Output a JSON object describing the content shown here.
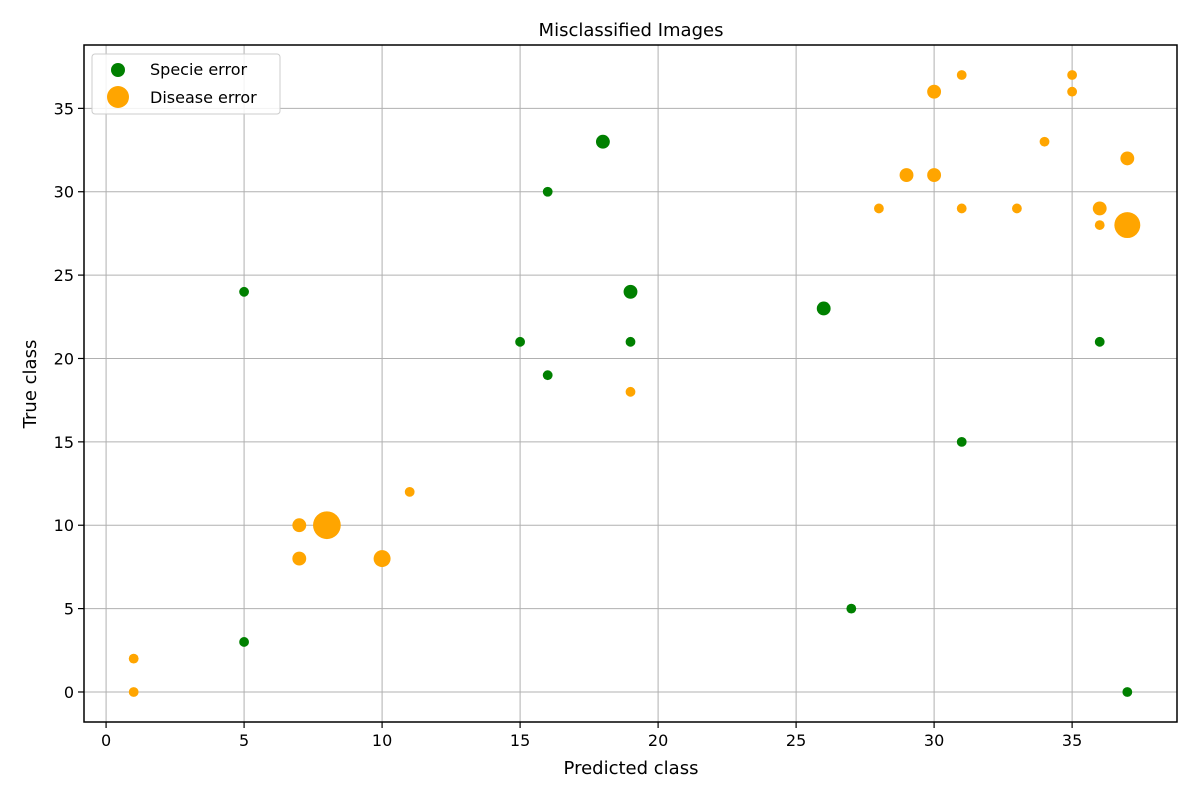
{
  "chart_data": {
    "type": "scatter",
    "title": "Misclassified Images",
    "xlabel": "Predicted class",
    "ylabel": "True class",
    "xlim": [
      -0.8,
      38.8
    ],
    "ylim": [
      -1.8,
      38.8
    ],
    "xticks": [
      0,
      5,
      10,
      15,
      20,
      25,
      30,
      35
    ],
    "yticks": [
      0,
      5,
      10,
      15,
      20,
      25,
      30,
      35
    ],
    "grid": true,
    "legend_position": "top-left",
    "series": [
      {
        "name": "Specie error",
        "color": "#008000",
        "points": [
          {
            "x": 5,
            "y": 24,
            "count": 1
          },
          {
            "x": 5,
            "y": 3,
            "count": 1
          },
          {
            "x": 15,
            "y": 21,
            "count": 1
          },
          {
            "x": 16,
            "y": 30,
            "count": 1
          },
          {
            "x": 16,
            "y": 19,
            "count": 1
          },
          {
            "x": 18,
            "y": 33,
            "count": 2
          },
          {
            "x": 19,
            "y": 24,
            "count": 2
          },
          {
            "x": 19,
            "y": 21,
            "count": 1
          },
          {
            "x": 26,
            "y": 23,
            "count": 2
          },
          {
            "x": 27,
            "y": 5,
            "count": 1
          },
          {
            "x": 31,
            "y": 15,
            "count": 1
          },
          {
            "x": 36,
            "y": 21,
            "count": 1
          },
          {
            "x": 37,
            "y": 0,
            "count": 1
          }
        ]
      },
      {
        "name": "Disease error",
        "color": "#ffa500",
        "points": [
          {
            "x": 1,
            "y": 2,
            "count": 1
          },
          {
            "x": 1,
            "y": 0,
            "count": 1
          },
          {
            "x": 7,
            "y": 10,
            "count": 2
          },
          {
            "x": 7,
            "y": 8,
            "count": 2
          },
          {
            "x": 8,
            "y": 10,
            "count": 8
          },
          {
            "x": 10,
            "y": 8,
            "count": 3
          },
          {
            "x": 11,
            "y": 12,
            "count": 1
          },
          {
            "x": 19,
            "y": 18,
            "count": 1
          },
          {
            "x": 28,
            "y": 29,
            "count": 1
          },
          {
            "x": 29,
            "y": 31,
            "count": 2
          },
          {
            "x": 30,
            "y": 36,
            "count": 2
          },
          {
            "x": 30,
            "y": 31,
            "count": 2
          },
          {
            "x": 31,
            "y": 37,
            "count": 1
          },
          {
            "x": 31,
            "y": 29,
            "count": 1
          },
          {
            "x": 33,
            "y": 29,
            "count": 1
          },
          {
            "x": 34,
            "y": 33,
            "count": 1
          },
          {
            "x": 35,
            "y": 37,
            "count": 1
          },
          {
            "x": 35,
            "y": 36,
            "count": 1
          },
          {
            "x": 36,
            "y": 29,
            "count": 2
          },
          {
            "x": 36,
            "y": 28,
            "count": 1
          },
          {
            "x": 37,
            "y": 32,
            "count": 2
          },
          {
            "x": 37,
            "y": 28,
            "count": 7
          }
        ]
      }
    ]
  }
}
